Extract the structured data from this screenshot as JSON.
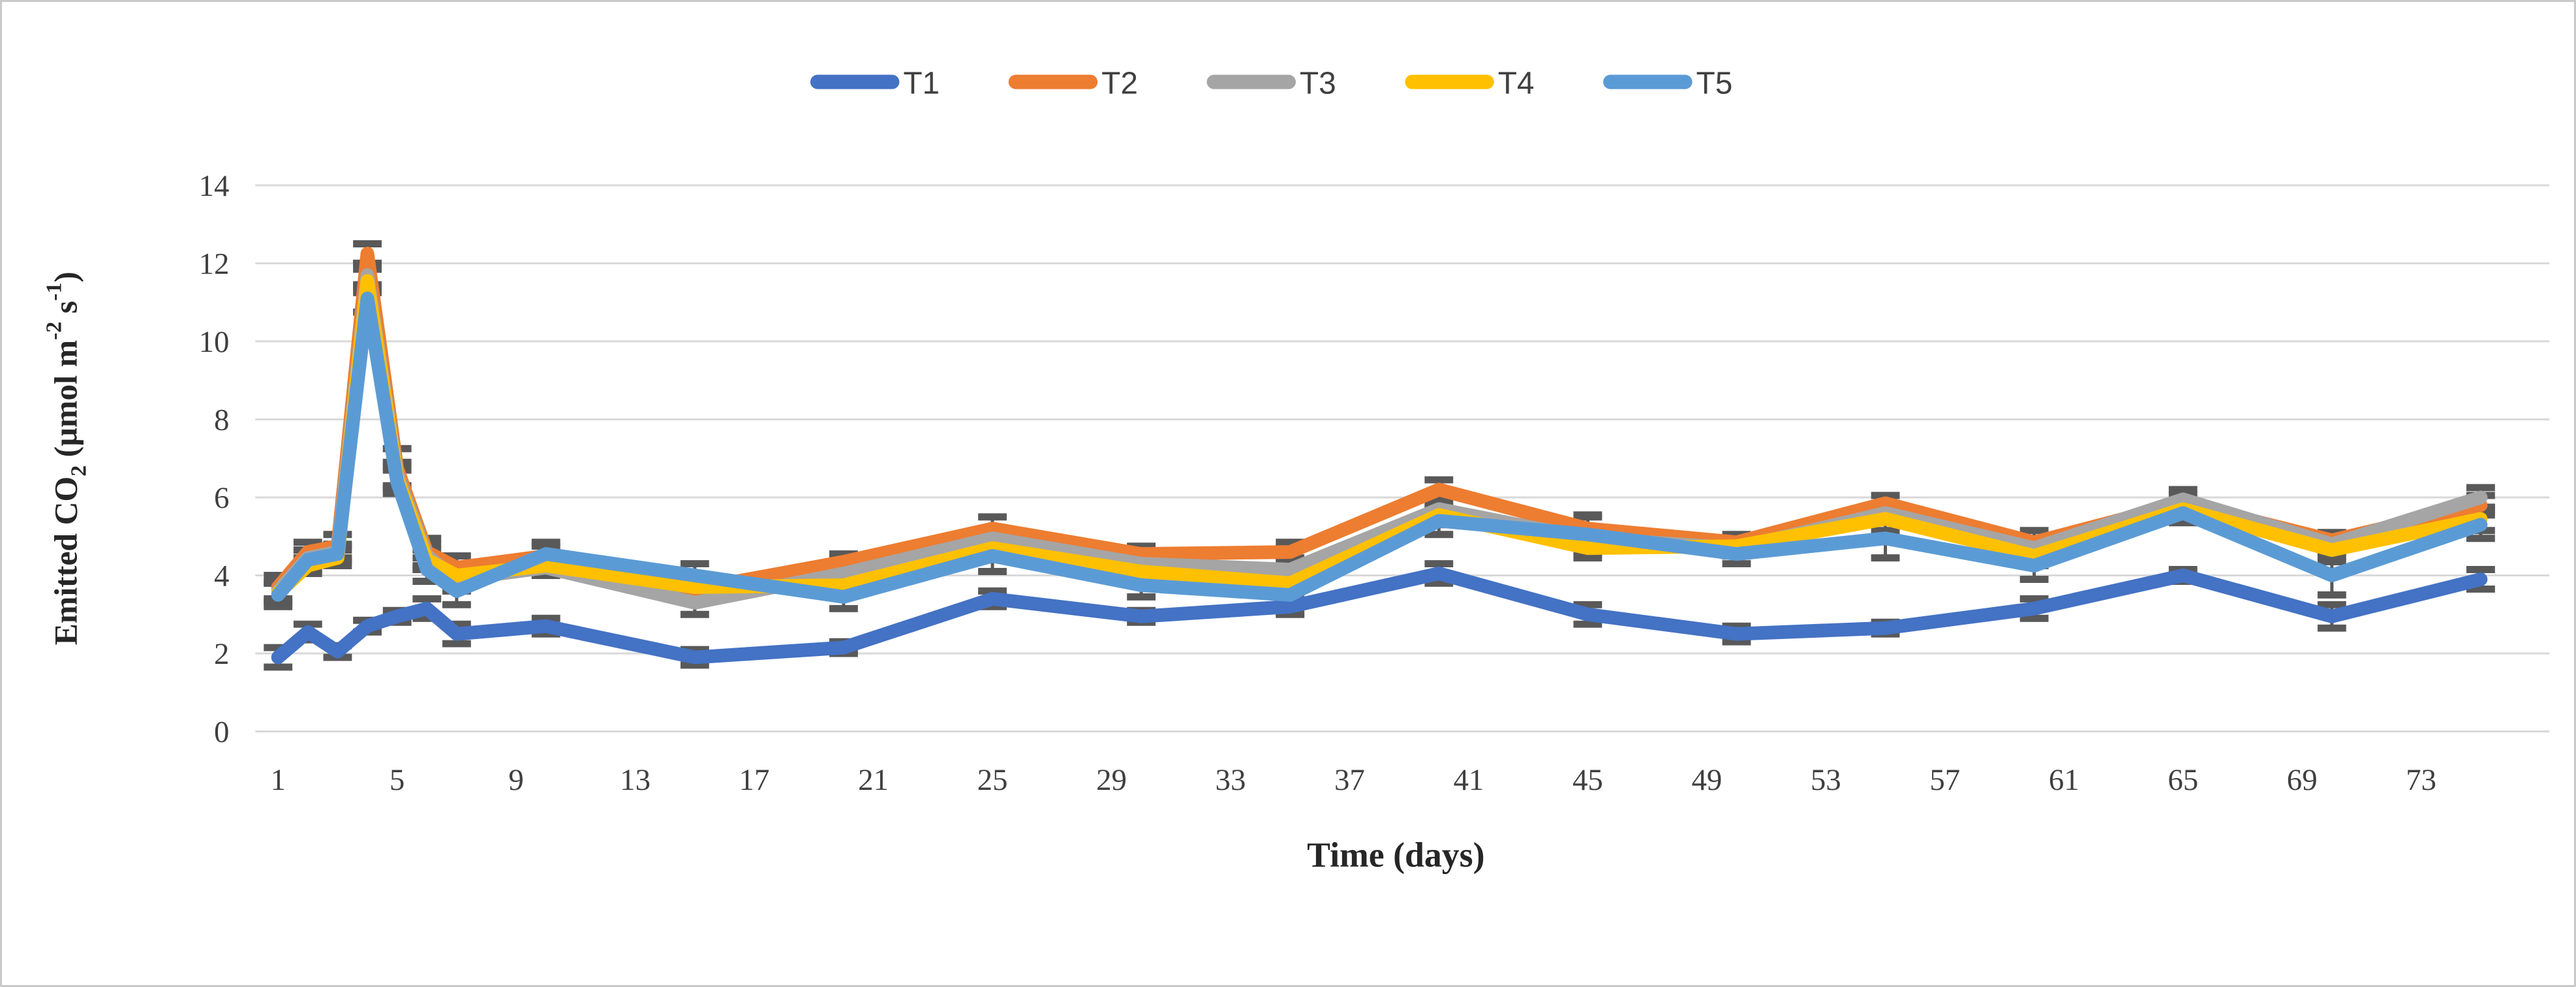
{
  "chart_data": {
    "type": "line",
    "title": "",
    "xlabel": "Time (days)",
    "ylabel": "Emitted CO2 (µmol m-2 s-1)",
    "ylabel_parts": [
      {
        "text": "Emitted CO",
        "style": "normal"
      },
      {
        "text": "2",
        "style": "sub"
      },
      {
        "text": " (µmol m",
        "style": "normal"
      },
      {
        "text": "-2",
        "style": "sup"
      },
      {
        "text": " s",
        "style": "normal"
      },
      {
        "text": "-1",
        "style": "sup"
      },
      {
        "text": ")",
        "style": "normal"
      }
    ],
    "x": [
      1,
      2,
      3,
      4,
      5,
      6,
      7,
      10,
      15,
      20,
      25,
      30,
      35,
      40,
      45,
      50,
      55,
      60,
      65,
      70,
      75
    ],
    "x_ticks": [
      1,
      5,
      9,
      13,
      17,
      21,
      25,
      29,
      33,
      37,
      41,
      45,
      49,
      53,
      57,
      61,
      65,
      69,
      73
    ],
    "y_ticks": [
      0,
      2,
      4,
      6,
      8,
      10,
      12,
      14
    ],
    "ylim": [
      0,
      14
    ],
    "xlim": [
      0,
      76
    ],
    "grid": true,
    "legend_position": "top-center",
    "gridline_color": "#d9d9d9",
    "error_bar_color": "#595959",
    "series": [
      {
        "name": "T1",
        "color": "#4472C4",
        "values": [
          1.9,
          2.55,
          2.05,
          2.7,
          2.95,
          3.15,
          2.5,
          2.7,
          1.9,
          2.15,
          3.4,
          2.95,
          3.2,
          4.05,
          3.0,
          2.5,
          2.65,
          3.15,
          4.0,
          2.95,
          3.9
        ],
        "errors": [
          0.25,
          0.2,
          0.15,
          0.15,
          0.15,
          0.25,
          0.25,
          0.2,
          0.2,
          0.15,
          0.2,
          0.15,
          0.2,
          0.25,
          0.25,
          0.2,
          0.15,
          0.25,
          0.15,
          0.3,
          0.25
        ]
      },
      {
        "name": "T2",
        "color": "#ED7D31",
        "values": [
          3.7,
          4.6,
          4.75,
          12.25,
          6.75,
          4.6,
          4.2,
          4.5,
          3.65,
          4.35,
          5.2,
          4.55,
          4.6,
          6.2,
          5.2,
          4.85,
          5.85,
          4.85,
          5.85,
          4.9,
          5.8
        ],
        "errors": [
          0.3,
          0.25,
          0.3,
          0.25,
          0.5,
          0.35,
          0.3,
          0.25,
          0.2,
          0.2,
          0.3,
          0.2,
          0.25,
          0.25,
          0.3,
          0.2,
          0.2,
          0.3,
          0.2,
          0.2,
          0.25
        ]
      },
      {
        "name": "T3",
        "color": "#A5A5A5",
        "values": [
          3.6,
          4.45,
          4.6,
          11.7,
          6.6,
          4.5,
          3.9,
          4.2,
          3.3,
          4.05,
          4.95,
          4.3,
          4.15,
          5.7,
          4.95,
          4.7,
          5.6,
          4.7,
          5.95,
          4.8,
          6.0
        ],
        "errors": [
          0.25,
          0.2,
          0.2,
          0.3,
          0.3,
          0.3,
          0.3,
          0.2,
          0.3,
          0.2,
          0.25,
          0.2,
          0.3,
          0.3,
          0.25,
          0.2,
          0.25,
          0.25,
          0.25,
          0.2,
          0.25
        ]
      },
      {
        "name": "T4",
        "color": "#FFC000",
        "values": [
          3.55,
          4.25,
          4.45,
          11.55,
          6.5,
          4.4,
          4.0,
          4.25,
          3.7,
          3.75,
          4.7,
          4.1,
          3.8,
          5.55,
          4.7,
          4.75,
          5.45,
          4.5,
          5.7,
          4.65,
          5.45
        ],
        "errors": [
          0.25,
          0.2,
          0.2,
          0.3,
          0.3,
          0.25,
          0.25,
          0.2,
          0.2,
          0.2,
          0.25,
          0.2,
          0.2,
          0.25,
          0.25,
          0.25,
          0.3,
          0.25,
          0.2,
          0.3,
          0.3
        ]
      },
      {
        "name": "T5",
        "color": "#5B9BD5",
        "values": [
          3.5,
          4.4,
          4.55,
          11.1,
          6.4,
          4.15,
          3.6,
          4.55,
          4.0,
          3.45,
          4.5,
          3.75,
          3.5,
          5.4,
          5.05,
          4.55,
          4.95,
          4.25,
          5.6,
          4.0,
          5.3
        ],
        "errors": [
          0.3,
          0.25,
          0.2,
          0.35,
          0.3,
          0.3,
          0.35,
          0.3,
          0.3,
          0.3,
          0.4,
          0.3,
          0.45,
          0.35,
          0.5,
          0.25,
          0.5,
          0.35,
          0.25,
          0.5,
          0.35
        ]
      }
    ]
  }
}
